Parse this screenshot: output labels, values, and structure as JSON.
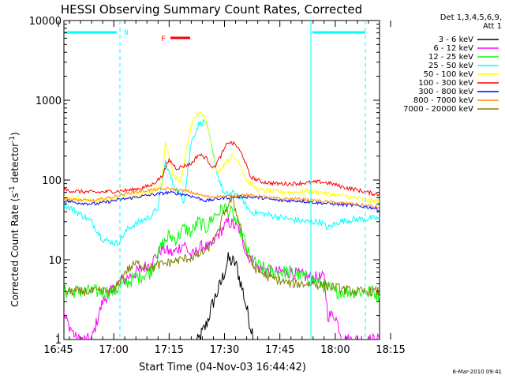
{
  "chart_data": {
    "type": "line",
    "title": "HESSI Observing Summary Count Rates, Corrected",
    "xlabel": "Start Time (04-Nov-03 16:44:42)",
    "ylabel": "Corrected Count Rate (s^-1 detector^-1)",
    "ylabel_base": "Corrected Count Rate (s",
    "ylabel_exp1": "-1",
    "ylabel_mid": " detector",
    "ylabel_exp2": "-1",
    "ylabel_end": ")",
    "xscale": "time",
    "yscale": "log",
    "xlim_minutes": [
      16.5,
      102
    ],
    "ylim": [
      1,
      10000
    ],
    "x_ticks": [
      {
        "label": "16:45",
        "t": 15
      },
      {
        "label": "17:00",
        "t": 30
      },
      {
        "label": "17:15",
        "t": 45
      },
      {
        "label": "17:30",
        "t": 60
      },
      {
        "label": "17:45",
        "t": 75
      },
      {
        "label": "18:00",
        "t": 90
      },
      {
        "label": "18:15",
        "t": 105
      }
    ],
    "y_ticks": [
      {
        "label": "1",
        "v": 1
      },
      {
        "label": "10",
        "v": 10
      },
      {
        "label": "100",
        "v": 100
      },
      {
        "label": "1000",
        "v": 1000
      },
      {
        "label": "10000",
        "v": 10000
      }
    ],
    "legend_header": [
      "Det 1,3,4,5,6,9,",
      "Att 1"
    ],
    "legend_position": "right",
    "annotations": {
      "night_label": "N",
      "flare_label": "F"
    },
    "series": [
      {
        "name": "3 - 6 keV",
        "color": "#000000",
        "points": [
          [
            52,
            0.8
          ],
          [
            55,
            1.5
          ],
          [
            57,
            3
          ],
          [
            59,
            5
          ],
          [
            61,
            10
          ],
          [
            63,
            9
          ],
          [
            65,
            4
          ],
          [
            67,
            1.5
          ],
          [
            69,
            0.8
          ]
        ]
      },
      {
        "name": "6 - 12 keV",
        "color": "#ff00ff",
        "points": [
          [
            16.5,
            2
          ],
          [
            20,
            1
          ],
          [
            24,
            1
          ],
          [
            27,
            3
          ],
          [
            31,
            5
          ],
          [
            36,
            7
          ],
          [
            40,
            9
          ],
          [
            43,
            14
          ],
          [
            46,
            12
          ],
          [
            49,
            16
          ],
          [
            51,
            11
          ],
          [
            54,
            15
          ],
          [
            56,
            14
          ],
          [
            58,
            20
          ],
          [
            61,
            30
          ],
          [
            64,
            24
          ],
          [
            66,
            12
          ],
          [
            69,
            8
          ],
          [
            73,
            7
          ],
          [
            78,
            7
          ],
          [
            83,
            6
          ],
          [
            87,
            6
          ],
          [
            88,
            2
          ],
          [
            90,
            2
          ],
          [
            92,
            1
          ],
          [
            102,
            1
          ]
        ]
      },
      {
        "name": "12 - 25 keV",
        "color": "#00ff00",
        "points": [
          [
            16.5,
            4
          ],
          [
            20,
            4
          ],
          [
            25,
            4
          ],
          [
            30,
            4
          ],
          [
            33,
            5
          ],
          [
            36,
            6
          ],
          [
            40,
            7
          ],
          [
            43,
            15
          ],
          [
            45,
            20
          ],
          [
            47,
            18
          ],
          [
            49,
            25
          ],
          [
            51,
            22
          ],
          [
            53,
            30
          ],
          [
            55,
            25
          ],
          [
            57,
            35
          ],
          [
            60,
            45
          ],
          [
            62,
            38
          ],
          [
            65,
            20
          ],
          [
            67,
            10
          ],
          [
            70,
            8
          ],
          [
            73,
            7
          ],
          [
            78,
            7
          ],
          [
            82,
            6
          ],
          [
            86,
            5
          ],
          [
            90,
            4
          ],
          [
            95,
            4
          ],
          [
            100,
            4
          ],
          [
            102,
            3.5
          ]
        ]
      },
      {
        "name": "25 - 50 keV",
        "color": "#00ffff",
        "points": [
          [
            16.5,
            50
          ],
          [
            20,
            40
          ],
          [
            24,
            30
          ],
          [
            27,
            18
          ],
          [
            31,
            16
          ],
          [
            34,
            25
          ],
          [
            37,
            30
          ],
          [
            40,
            35
          ],
          [
            42,
            45
          ],
          [
            44,
            170
          ],
          [
            46,
            90
          ],
          [
            49,
            55
          ],
          [
            51,
            300
          ],
          [
            53,
            500
          ],
          [
            55,
            550
          ],
          [
            58,
            120
          ],
          [
            60,
            65
          ],
          [
            63,
            70
          ],
          [
            65,
            55
          ],
          [
            67,
            40
          ],
          [
            70,
            38
          ],
          [
            74,
            35
          ],
          [
            78,
            32
          ],
          [
            82,
            30
          ],
          [
            86,
            30
          ],
          [
            88,
            25
          ],
          [
            91,
            30
          ],
          [
            95,
            32
          ],
          [
            100,
            33
          ],
          [
            102,
            33
          ]
        ]
      },
      {
        "name": "50 - 100 keV",
        "color": "#ffff00",
        "points": [
          [
            16.5,
            60
          ],
          [
            20,
            58
          ],
          [
            25,
            55
          ],
          [
            30,
            58
          ],
          [
            35,
            62
          ],
          [
            40,
            70
          ],
          [
            43,
            90
          ],
          [
            44,
            300
          ],
          [
            46,
            120
          ],
          [
            48,
            90
          ],
          [
            51,
            500
          ],
          [
            53,
            700
          ],
          [
            55,
            600
          ],
          [
            58,
            120
          ],
          [
            60,
            160
          ],
          [
            62,
            200
          ],
          [
            64,
            170
          ],
          [
            66,
            100
          ],
          [
            69,
            75
          ],
          [
            73,
            72
          ],
          [
            78,
            70
          ],
          [
            82,
            72
          ],
          [
            86,
            70
          ],
          [
            90,
            65
          ],
          [
            95,
            60
          ],
          [
            100,
            55
          ],
          [
            102,
            55
          ]
        ]
      },
      {
        "name": "100 - 300 keV",
        "color": "#ff0000",
        "points": [
          [
            16.5,
            75
          ],
          [
            20,
            72
          ],
          [
            25,
            70
          ],
          [
            30,
            72
          ],
          [
            35,
            75
          ],
          [
            40,
            85
          ],
          [
            43,
            110
          ],
          [
            45,
            180
          ],
          [
            47,
            140
          ],
          [
            49,
            150
          ],
          [
            51,
            160
          ],
          [
            53,
            210
          ],
          [
            55,
            190
          ],
          [
            57,
            140
          ],
          [
            59,
            200
          ],
          [
            61,
            300
          ],
          [
            63,
            280
          ],
          [
            65,
            200
          ],
          [
            67,
            110
          ],
          [
            70,
            95
          ],
          [
            74,
            90
          ],
          [
            78,
            90
          ],
          [
            82,
            92
          ],
          [
            86,
            95
          ],
          [
            89,
            90
          ],
          [
            92,
            82
          ],
          [
            96,
            75
          ],
          [
            100,
            68
          ],
          [
            102,
            65
          ]
        ]
      },
      {
        "name": "300 - 800 keV",
        "color": "#0000ff",
        "points": [
          [
            16.5,
            55
          ],
          [
            20,
            52
          ],
          [
            25,
            50
          ],
          [
            30,
            55
          ],
          [
            35,
            60
          ],
          [
            40,
            65
          ],
          [
            45,
            70
          ],
          [
            50,
            65
          ],
          [
            55,
            55
          ],
          [
            60,
            60
          ],
          [
            65,
            62
          ],
          [
            70,
            60
          ],
          [
            75,
            55
          ],
          [
            80,
            55
          ],
          [
            85,
            52
          ],
          [
            90,
            50
          ],
          [
            95,
            48
          ],
          [
            100,
            45
          ],
          [
            102,
            42
          ]
        ]
      },
      {
        "name": "800 - 7000 keV",
        "color": "#ff8c00",
        "points": [
          [
            16.5,
            58
          ],
          [
            20,
            56
          ],
          [
            25,
            55
          ],
          [
            30,
            62
          ],
          [
            35,
            70
          ],
          [
            40,
            75
          ],
          [
            45,
            78
          ],
          [
            50,
            72
          ],
          [
            55,
            62
          ],
          [
            60,
            62
          ],
          [
            65,
            65
          ],
          [
            70,
            62
          ],
          [
            75,
            58
          ],
          [
            80,
            58
          ],
          [
            85,
            55
          ],
          [
            90,
            52
          ],
          [
            95,
            50
          ],
          [
            100,
            47
          ],
          [
            102,
            45
          ]
        ]
      },
      {
        "name": "7000 - 20000 keV",
        "color": "#808000",
        "points": [
          [
            16.5,
            4
          ],
          [
            20,
            4
          ],
          [
            25,
            4
          ],
          [
            30,
            4
          ],
          [
            33,
            7
          ],
          [
            36,
            9
          ],
          [
            40,
            8
          ],
          [
            44,
            9
          ],
          [
            48,
            10
          ],
          [
            52,
            11
          ],
          [
            55,
            13
          ],
          [
            58,
            20
          ],
          [
            60,
            40
          ],
          [
            62,
            58
          ],
          [
            64,
            30
          ],
          [
            66,
            12
          ],
          [
            68,
            8
          ],
          [
            72,
            6
          ],
          [
            78,
            5
          ],
          [
            84,
            5
          ],
          [
            90,
            4.5
          ],
          [
            95,
            4
          ],
          [
            100,
            4
          ],
          [
            102,
            4
          ]
        ]
      }
    ]
  },
  "footer": {
    "timestamp": "6-Mar-2010 09:41"
  }
}
